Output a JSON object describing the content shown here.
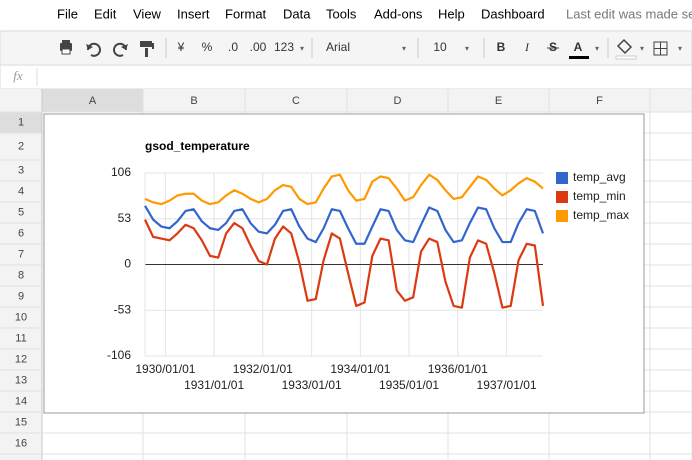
{
  "ui": {
    "menu": [
      "File",
      "Edit",
      "View",
      "Insert",
      "Format",
      "Data",
      "Tools",
      "Add-ons",
      "Help",
      "Dashboard"
    ],
    "last_edit": "Last edit was made se",
    "toolbar": {
      "currency": "¥",
      "percent": "%",
      "decrease_decimals": ".0",
      "increase_decimals": ".00",
      "number_format": "123",
      "font": "Arial",
      "font_size": "10",
      "bold": "B",
      "italic": "I",
      "strikethrough": "S",
      "text_color": "A"
    },
    "formula_label": "fx",
    "columns": [
      "A",
      "B",
      "C",
      "D",
      "E",
      "F"
    ],
    "rows": [
      1,
      2,
      3,
      4,
      5,
      6,
      7,
      8,
      9,
      10,
      11,
      12,
      13,
      14,
      15,
      16
    ]
  },
  "chart_data": {
    "type": "line",
    "title": "gsod_temperature",
    "x": [
      "1929/08/01",
      "1929/10/01",
      "1929/12/01",
      "1930/02/01",
      "1930/04/01",
      "1930/06/01",
      "1930/08/01",
      "1930/10/01",
      "1930/12/01",
      "1931/02/01",
      "1931/04/01",
      "1931/06/01",
      "1931/08/01",
      "1931/10/01",
      "1931/12/01",
      "1932/02/01",
      "1932/04/01",
      "1932/06/01",
      "1932/08/01",
      "1932/10/01",
      "1932/12/01",
      "1933/02/01",
      "1933/04/01",
      "1933/06/01",
      "1933/08/01",
      "1933/10/01",
      "1933/12/01",
      "1934/02/01",
      "1934/04/01",
      "1934/06/01",
      "1934/08/01",
      "1934/10/01",
      "1934/12/01",
      "1935/02/01",
      "1935/04/01",
      "1935/06/01",
      "1935/08/01",
      "1935/10/01",
      "1935/12/01",
      "1936/02/01",
      "1936/04/01",
      "1936/06/01",
      "1936/08/01",
      "1936/10/01",
      "1936/12/01",
      "1937/02/01",
      "1937/04/01",
      "1937/06/01",
      "1937/08/01",
      "1937/10/01"
    ],
    "series": [
      {
        "name": "temp_avg",
        "color": "#3366cc",
        "values": [
          68,
          52,
          44,
          42,
          50,
          62,
          64,
          50,
          42,
          40,
          48,
          62,
          64,
          48,
          38,
          36,
          46,
          62,
          64,
          44,
          30,
          26,
          42,
          64,
          62,
          42,
          24,
          24,
          44,
          64,
          62,
          40,
          28,
          26,
          46,
          66,
          62,
          40,
          26,
          28,
          48,
          66,
          64,
          42,
          26,
          26,
          48,
          64,
          62,
          36
        ]
      },
      {
        "name": "temp_min",
        "color": "#dc3912",
        "values": [
          52,
          32,
          30,
          28,
          36,
          46,
          42,
          28,
          10,
          8,
          36,
          48,
          42,
          22,
          4,
          0,
          30,
          44,
          36,
          2,
          -42,
          -40,
          5,
          36,
          30,
          -10,
          -48,
          -44,
          10,
          30,
          28,
          -30,
          -42,
          -38,
          15,
          30,
          26,
          -20,
          -48,
          -50,
          8,
          28,
          24,
          -10,
          -50,
          -48,
          5,
          24,
          22,
          -48
        ]
      },
      {
        "name": "temp_max",
        "color": "#ff9900",
        "values": [
          76,
          72,
          70,
          74,
          80,
          82,
          82,
          74,
          70,
          72,
          80,
          86,
          82,
          76,
          72,
          76,
          86,
          92,
          90,
          76,
          70,
          72,
          88,
          102,
          104,
          86,
          74,
          76,
          96,
          102,
          100,
          88,
          74,
          78,
          92,
          104,
          98,
          86,
          76,
          78,
          90,
          102,
          98,
          88,
          80,
          86,
          94,
          100,
          96,
          88
        ]
      }
    ],
    "xlim": [
      "1929/08/01",
      "1937/10/01"
    ],
    "xticks": [
      "1930/01/01",
      "1931/01/01",
      "1932/01/01",
      "1933/01/01",
      "1934/01/01",
      "1935/01/01",
      "1936/01/01",
      "1937/01/01"
    ],
    "ylim": [
      -106,
      106
    ],
    "yticks": [
      -106,
      -53,
      0,
      53,
      106
    ],
    "grid": true,
    "legend": "right"
  }
}
